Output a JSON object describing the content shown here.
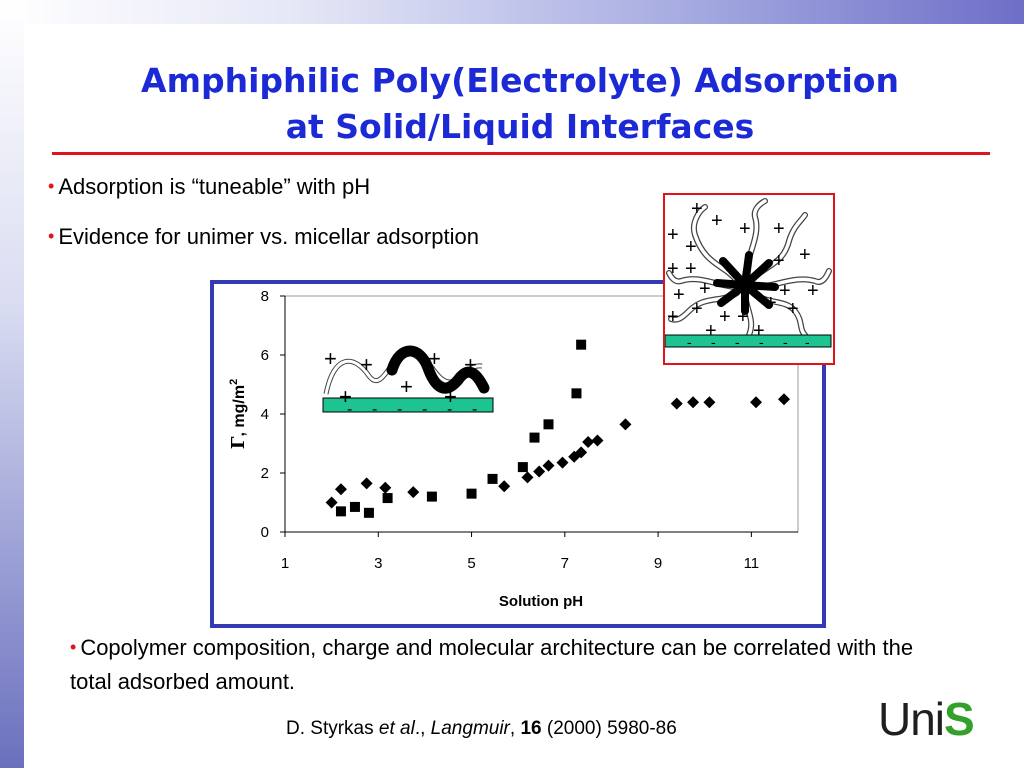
{
  "slide": {
    "title_line1": "Amphiphilic Poly(Electrolyte) Adsorption",
    "title_line2": "at Solid/Liquid Interfaces",
    "bullet_glyph": "•",
    "bullets": [
      "Adsorption is “tuneable” with pH",
      "Evidence for unimer vs. micellar adsorption"
    ],
    "bottom_text": "Copolymer composition, charge and molecular architecture can be correlated with the  total adsorbed amount.",
    "citation": {
      "authors": "D. Styrkas ",
      "et_al": "et al",
      "sep1": "., ",
      "journal": "Langmuir",
      "sep2": ", ",
      "volume": "16",
      "rest": " (2000) 5980-86"
    },
    "logo": {
      "part1": "Uni",
      "part2": "S"
    },
    "colors": {
      "title": "#1c2ad6",
      "rule": "#e0141b",
      "chart_frame": "#3439b4",
      "surface": "#1ec392",
      "logo_s": "#33a02c"
    }
  },
  "insets": {
    "small_plus": "+",
    "small_minus": "-",
    "description_icons": [
      "polymer-chain-on-surface-icon",
      "micelle-on-surface-icon"
    ]
  },
  "chart_data": {
    "type": "scatter",
    "title": "",
    "xlabel": "Solution pH",
    "ylabel_greek": "Γ",
    "ylabel_unit": ", mg/m",
    "ylabel_sup": "2",
    "xlim": [
      1,
      12
    ],
    "ylim": [
      0,
      8
    ],
    "xticks": [
      1,
      3,
      5,
      7,
      9,
      11
    ],
    "yticks": [
      0,
      2,
      4,
      6,
      8
    ],
    "grid": false,
    "legend": "none",
    "series": [
      {
        "marker": "diamond",
        "points": [
          [
            2.0,
            1.0
          ],
          [
            2.2,
            1.45
          ],
          [
            2.75,
            1.65
          ],
          [
            3.15,
            1.5
          ],
          [
            3.75,
            1.35
          ],
          [
            5.7,
            1.55
          ],
          [
            6.2,
            1.85
          ],
          [
            6.45,
            2.05
          ],
          [
            6.65,
            2.25
          ],
          [
            6.95,
            2.35
          ],
          [
            7.2,
            2.55
          ],
          [
            7.35,
            2.7
          ],
          [
            7.5,
            3.05
          ],
          [
            7.7,
            3.1
          ],
          [
            8.3,
            3.65
          ],
          [
            9.4,
            4.35
          ],
          [
            9.75,
            4.4
          ],
          [
            10.1,
            4.4
          ],
          [
            11.1,
            4.4
          ],
          [
            11.7,
            4.5
          ]
        ]
      },
      {
        "marker": "square",
        "points": [
          [
            2.2,
            0.7
          ],
          [
            2.5,
            0.85
          ],
          [
            2.8,
            0.65
          ],
          [
            3.2,
            1.15
          ],
          [
            4.15,
            1.2
          ],
          [
            5.0,
            1.3
          ],
          [
            5.45,
            1.8
          ],
          [
            6.1,
            2.2
          ],
          [
            6.35,
            3.2
          ],
          [
            6.65,
            3.65
          ],
          [
            7.25,
            4.7
          ],
          [
            7.35,
            6.35
          ]
        ]
      }
    ]
  }
}
